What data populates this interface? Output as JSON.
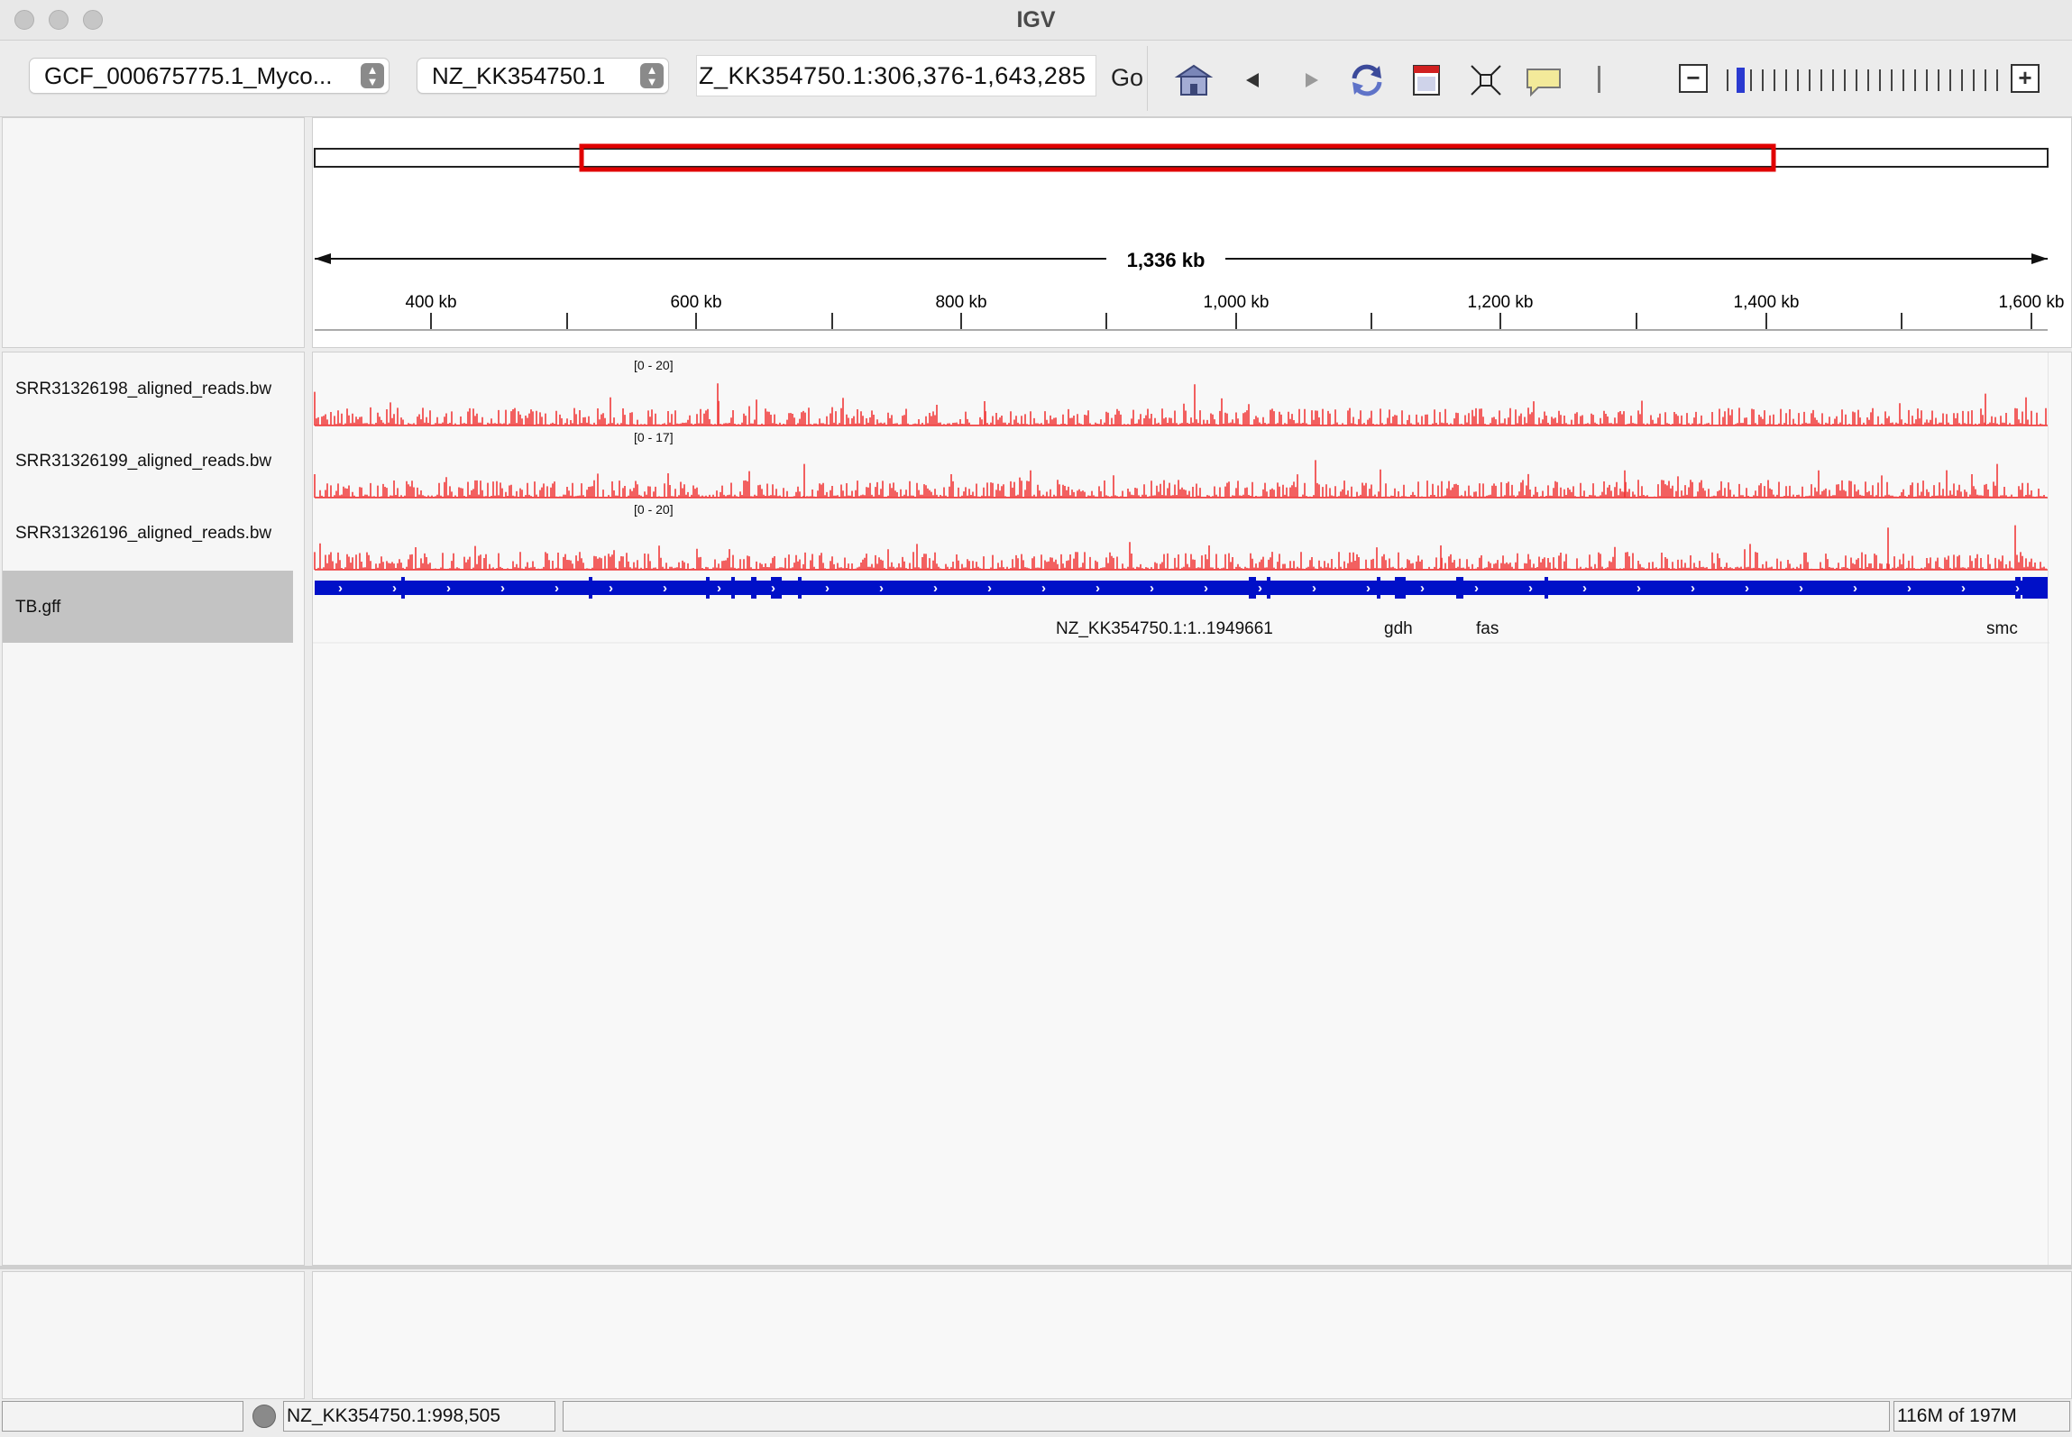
{
  "window": {
    "title": "IGV"
  },
  "toolbar": {
    "genome": "GCF_000675775.1_Myco...",
    "chromosome": "NZ_KK354750.1",
    "locus": "Z_KK354750.1:306,376-1,643,285",
    "go_label": "Go"
  },
  "ruler": {
    "span_label": "1,336 kb",
    "ticks": [
      "400 kb",
      "600 kb",
      "800 kb",
      "1,000 kb",
      "1,200 kb",
      "1,400 kb",
      "1,600 kb"
    ]
  },
  "tracks": [
    {
      "name": "SRR31326198_aligned_reads.bw",
      "range": "[0 - 20]",
      "color": "#f03a3a"
    },
    {
      "name": "SRR31326199_aligned_reads.bw",
      "range": "[0 - 17]",
      "color": "#f03a3a"
    },
    {
      "name": "SRR31326196_aligned_reads.bw",
      "range": "[0 - 20]",
      "color": "#f03a3a"
    }
  ],
  "annotation": {
    "name": "TB.gff",
    "color": "#0010c8",
    "labels": [
      "NZ_KK354750.1:1..1949661",
      "gdh",
      "fas",
      "smc"
    ]
  },
  "status": {
    "position": "NZ_KK354750.1:998,505",
    "memory": "116M of 197M"
  },
  "icons": [
    "home-icon",
    "back-icon",
    "forward-icon",
    "refresh-icon",
    "region-of-interest-icon",
    "fit-window-icon",
    "popup-info-icon",
    "zoom-out-icon",
    "zoom-in-icon"
  ]
}
